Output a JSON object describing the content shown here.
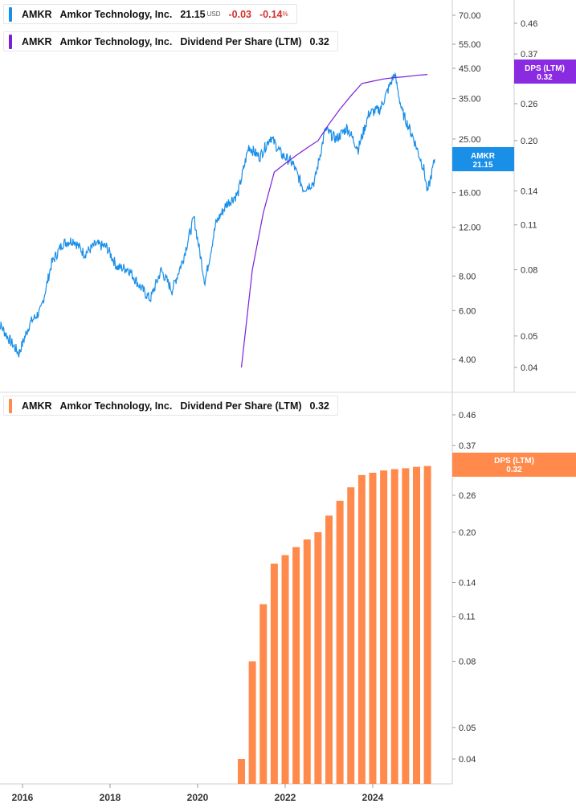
{
  "colors": {
    "price": "#1a8fe8",
    "dps_line": "#7b1fd8",
    "dps_bar": "#ff8a4c",
    "dps_bar_label": "#ff7b3a",
    "dps_top_label": "#8a2be2",
    "amkr_label": "#1a8fe8",
    "negative": "#d23030"
  },
  "legend_top": {
    "ticker": "AMKR",
    "company": "Amkor Technology, Inc.",
    "price": "21.15",
    "currency": "USD",
    "change": "-0.03",
    "change_pct": "-0.14",
    "pct_sign": "%"
  },
  "legend_dps": {
    "ticker": "AMKR",
    "company": "Amkor Technology, Inc.",
    "metric": "Dividend Per Share (LTM)",
    "value": "0.32"
  },
  "legend_bottom": {
    "ticker": "AMKR",
    "company": "Amkor Technology, Inc.",
    "metric": "Dividend Per Share (LTM)",
    "value": "0.32"
  },
  "price_axis_ticks": [
    "70.00",
    "55.00",
    "45.00",
    "35.00",
    "25.00",
    "16.00",
    "12.00",
    "8.00",
    "6.00",
    "4.00"
  ],
  "dps_axis_ticks_top": [
    "0.46",
    "0.37",
    "0.26",
    "0.20",
    "0.14",
    "0.11",
    "0.08",
    "0.05",
    "0.04"
  ],
  "dps_axis_ticks_bottom": [
    "0.46",
    "0.37",
    "0.32",
    "0.26",
    "0.20",
    "0.14",
    "0.11",
    "0.08",
    "0.05",
    "0.04"
  ],
  "x_axis_ticks": [
    "2016",
    "2018",
    "2020",
    "2022",
    "2024"
  ],
  "price_label": {
    "name": "AMKR",
    "value": "21.15"
  },
  "dps_label_top": {
    "name": "DPS (LTM)",
    "value": "0.32"
  },
  "dps_label_bottom": {
    "name": "DPS (LTM)",
    "value": "0.32"
  },
  "chart_data": [
    {
      "type": "line",
      "scale": "log",
      "series": [
        {
          "name": "AMKR",
          "x": [
            "2015-06",
            "2015-09",
            "2015-12",
            "2016-03",
            "2016-06",
            "2016-09",
            "2016-12",
            "2017-03",
            "2017-06",
            "2017-09",
            "2017-12",
            "2018-03",
            "2018-06",
            "2018-09",
            "2018-12",
            "2019-03",
            "2019-06",
            "2019-09",
            "2019-12",
            "2020-03",
            "2020-06",
            "2020-09",
            "2020-12",
            "2021-03",
            "2021-06",
            "2021-09",
            "2021-12",
            "2022-03",
            "2022-06",
            "2022-09",
            "2022-12",
            "2023-03",
            "2023-06",
            "2023-09",
            "2023-12",
            "2024-03",
            "2024-06",
            "2024-07",
            "2024-09",
            "2024-12",
            "2025-03",
            "2025-04",
            "2025-06"
          ],
          "values": [
            5.6,
            4.8,
            4.2,
            5.4,
            6.0,
            8.9,
            10.5,
            10.8,
            9.6,
            10.4,
            10.2,
            8.6,
            8.5,
            7.4,
            6.6,
            8.4,
            7.1,
            9.2,
            13.0,
            7.6,
            12.4,
            14.6,
            15.8,
            23.5,
            21.5,
            25.5,
            22.0,
            20.5,
            16.5,
            17.5,
            27.0,
            25.0,
            27.5,
            23.0,
            31.0,
            32.0,
            40.0,
            43.0,
            31.5,
            25.5,
            19.5,
            16.0,
            21.15
          ]
        },
        {
          "name": "Dividend Per Share (LTM)",
          "x": [
            "2021-01",
            "2021-04",
            "2021-07",
            "2021-10",
            "2022-01",
            "2022-04",
            "2022-07",
            "2022-10",
            "2023-01",
            "2023-04",
            "2023-07",
            "2023-10",
            "2024-01",
            "2024-04",
            "2024-07",
            "2024-10",
            "2025-01",
            "2025-04"
          ],
          "values": [
            0.04,
            0.08,
            0.12,
            0.16,
            0.17,
            0.18,
            0.19,
            0.2,
            0.225,
            0.25,
            0.275,
            0.3,
            0.305,
            0.31,
            0.313,
            0.315,
            0.318,
            0.32
          ]
        }
      ],
      "x_ticks": [
        "2016",
        "2018",
        "2020",
        "2022",
        "2024"
      ]
    },
    {
      "type": "bar",
      "scale": "log",
      "series": [
        {
          "name": "Dividend Per Share (LTM)",
          "x": [
            "2021-01",
            "2021-04",
            "2021-07",
            "2021-10",
            "2022-01",
            "2022-04",
            "2022-07",
            "2022-10",
            "2023-01",
            "2023-04",
            "2023-07",
            "2023-10",
            "2024-01",
            "2024-04",
            "2024-07",
            "2024-10",
            "2025-01",
            "2025-04"
          ],
          "values": [
            0.04,
            0.08,
            0.12,
            0.16,
            0.17,
            0.18,
            0.19,
            0.2,
            0.225,
            0.25,
            0.275,
            0.3,
            0.305,
            0.31,
            0.313,
            0.315,
            0.318,
            0.32
          ]
        }
      ],
      "x_ticks": [
        "2016",
        "2018",
        "2020",
        "2022",
        "2024"
      ]
    }
  ]
}
